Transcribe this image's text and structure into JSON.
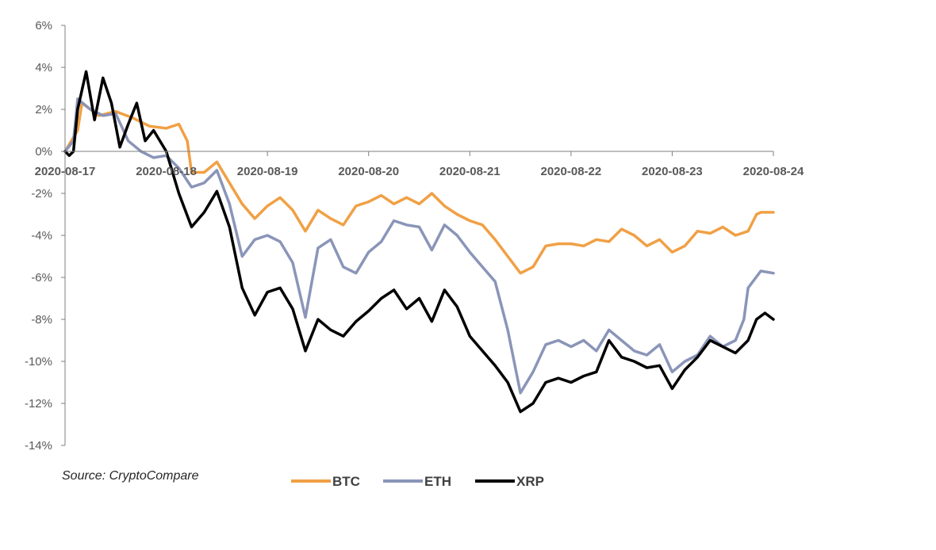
{
  "chart_data": {
    "type": "line",
    "title": "",
    "xlabel": "",
    "ylabel": "",
    "source": "Source: CryptoCompare",
    "ylim": [
      -14,
      6
    ],
    "xlim": [
      "2020-08-17",
      "2020-08-24"
    ],
    "y_ticks": [
      "6%",
      "4%",
      "2%",
      "0%",
      "-2%",
      "-4%",
      "-6%",
      "-8%",
      "-10%",
      "-12%",
      "-14%"
    ],
    "x_ticks": [
      "2020-08-17",
      "2020-08-18",
      "2020-08-19",
      "2020-08-20",
      "2020-08-21",
      "2020-08-22",
      "2020-08-23",
      "2020-08-24"
    ],
    "legend_position": "bottom",
    "grid": false,
    "series": [
      {
        "name": "BTC",
        "color": "#f0a045",
        "points": [
          [
            "2020-08-17 00:00",
            0.0
          ],
          [
            "2020-08-17 03:00",
            1.0
          ],
          [
            "2020-08-17 04:00",
            2.3
          ],
          [
            "2020-08-17 08:00",
            1.7
          ],
          [
            "2020-08-17 12:00",
            1.9
          ],
          [
            "2020-08-17 16:00",
            1.6
          ],
          [
            "2020-08-17 20:00",
            1.2
          ],
          [
            "2020-08-18 00:00",
            1.1
          ],
          [
            "2020-08-18 03:00",
            1.3
          ],
          [
            "2020-08-18 05:00",
            0.5
          ],
          [
            "2020-08-18 06:00",
            -1.0
          ],
          [
            "2020-08-18 09:00",
            -1.0
          ],
          [
            "2020-08-18 12:00",
            -0.5
          ],
          [
            "2020-08-18 15:00",
            -1.5
          ],
          [
            "2020-08-18 18:00",
            -2.5
          ],
          [
            "2020-08-18 21:00",
            -3.2
          ],
          [
            "2020-08-19 00:00",
            -2.6
          ],
          [
            "2020-08-19 03:00",
            -2.2
          ],
          [
            "2020-08-19 06:00",
            -2.8
          ],
          [
            "2020-08-19 09:00",
            -3.8
          ],
          [
            "2020-08-19 12:00",
            -2.8
          ],
          [
            "2020-08-19 15:00",
            -3.2
          ],
          [
            "2020-08-19 18:00",
            -3.5
          ],
          [
            "2020-08-19 21:00",
            -2.6
          ],
          [
            "2020-08-20 00:00",
            -2.4
          ],
          [
            "2020-08-20 03:00",
            -2.1
          ],
          [
            "2020-08-20 06:00",
            -2.5
          ],
          [
            "2020-08-20 09:00",
            -2.2
          ],
          [
            "2020-08-20 12:00",
            -2.5
          ],
          [
            "2020-08-20 15:00",
            -2.0
          ],
          [
            "2020-08-20 18:00",
            -2.6
          ],
          [
            "2020-08-20 21:00",
            -3.0
          ],
          [
            "2020-08-21 00:00",
            -3.3
          ],
          [
            "2020-08-21 03:00",
            -3.5
          ],
          [
            "2020-08-21 06:00",
            -4.2
          ],
          [
            "2020-08-21 09:00",
            -5.0
          ],
          [
            "2020-08-21 12:00",
            -5.8
          ],
          [
            "2020-08-21 15:00",
            -5.5
          ],
          [
            "2020-08-21 18:00",
            -4.5
          ],
          [
            "2020-08-21 21:00",
            -4.4
          ],
          [
            "2020-08-22 00:00",
            -4.4
          ],
          [
            "2020-08-22 03:00",
            -4.5
          ],
          [
            "2020-08-22 06:00",
            -4.2
          ],
          [
            "2020-08-22 09:00",
            -4.3
          ],
          [
            "2020-08-22 12:00",
            -3.7
          ],
          [
            "2020-08-22 15:00",
            -4.0
          ],
          [
            "2020-08-22 18:00",
            -4.5
          ],
          [
            "2020-08-22 21:00",
            -4.2
          ],
          [
            "2020-08-23 00:00",
            -4.8
          ],
          [
            "2020-08-23 03:00",
            -4.5
          ],
          [
            "2020-08-23 06:00",
            -3.8
          ],
          [
            "2020-08-23 09:00",
            -3.9
          ],
          [
            "2020-08-23 12:00",
            -3.6
          ],
          [
            "2020-08-23 15:00",
            -4.0
          ],
          [
            "2020-08-23 18:00",
            -3.8
          ],
          [
            "2020-08-23 20:00",
            -3.0
          ],
          [
            "2020-08-23 21:00",
            -2.9
          ],
          [
            "2020-08-24 00:00",
            -2.9
          ]
        ]
      },
      {
        "name": "ETH",
        "color": "#8a95b8",
        "points": [
          [
            "2020-08-17 00:00",
            0.0
          ],
          [
            "2020-08-17 02:00",
            0.5
          ],
          [
            "2020-08-17 03:00",
            2.5
          ],
          [
            "2020-08-17 06:00",
            2.0
          ],
          [
            "2020-08-17 09:00",
            1.7
          ],
          [
            "2020-08-17 12:00",
            1.8
          ],
          [
            "2020-08-17 15:00",
            0.5
          ],
          [
            "2020-08-17 18:00",
            0.0
          ],
          [
            "2020-08-17 21:00",
            -0.3
          ],
          [
            "2020-08-18 00:00",
            -0.2
          ],
          [
            "2020-08-18 03:00",
            -0.8
          ],
          [
            "2020-08-18 06:00",
            -1.7
          ],
          [
            "2020-08-18 09:00",
            -1.5
          ],
          [
            "2020-08-18 12:00",
            -0.9
          ],
          [
            "2020-08-18 15:00",
            -2.5
          ],
          [
            "2020-08-18 18:00",
            -5.0
          ],
          [
            "2020-08-18 21:00",
            -4.2
          ],
          [
            "2020-08-19 00:00",
            -4.0
          ],
          [
            "2020-08-19 03:00",
            -4.3
          ],
          [
            "2020-08-19 06:00",
            -5.3
          ],
          [
            "2020-08-19 09:00",
            -7.9
          ],
          [
            "2020-08-19 12:00",
            -4.6
          ],
          [
            "2020-08-19 15:00",
            -4.2
          ],
          [
            "2020-08-19 18:00",
            -5.5
          ],
          [
            "2020-08-19 21:00",
            -5.8
          ],
          [
            "2020-08-20 00:00",
            -4.8
          ],
          [
            "2020-08-20 03:00",
            -4.3
          ],
          [
            "2020-08-20 06:00",
            -3.3
          ],
          [
            "2020-08-20 09:00",
            -3.5
          ],
          [
            "2020-08-20 12:00",
            -3.6
          ],
          [
            "2020-08-20 15:00",
            -4.7
          ],
          [
            "2020-08-20 18:00",
            -3.5
          ],
          [
            "2020-08-20 21:00",
            -4.0
          ],
          [
            "2020-08-21 00:00",
            -4.8
          ],
          [
            "2020-08-21 03:00",
            -5.5
          ],
          [
            "2020-08-21 06:00",
            -6.2
          ],
          [
            "2020-08-21 09:00",
            -8.5
          ],
          [
            "2020-08-21 12:00",
            -11.5
          ],
          [
            "2020-08-21 15:00",
            -10.5
          ],
          [
            "2020-08-21 18:00",
            -9.2
          ],
          [
            "2020-08-21 21:00",
            -9.0
          ],
          [
            "2020-08-22 00:00",
            -9.3
          ],
          [
            "2020-08-22 03:00",
            -9.0
          ],
          [
            "2020-08-22 06:00",
            -9.5
          ],
          [
            "2020-08-22 09:00",
            -8.5
          ],
          [
            "2020-08-22 12:00",
            -9.0
          ],
          [
            "2020-08-22 15:00",
            -9.5
          ],
          [
            "2020-08-22 18:00",
            -9.7
          ],
          [
            "2020-08-22 21:00",
            -9.2
          ],
          [
            "2020-08-23 00:00",
            -10.5
          ],
          [
            "2020-08-23 03:00",
            -10.0
          ],
          [
            "2020-08-23 06:00",
            -9.7
          ],
          [
            "2020-08-23 09:00",
            -8.8
          ],
          [
            "2020-08-23 12:00",
            -9.3
          ],
          [
            "2020-08-23 15:00",
            -9.0
          ],
          [
            "2020-08-23 17:00",
            -8.0
          ],
          [
            "2020-08-23 18:00",
            -6.5
          ],
          [
            "2020-08-23 21:00",
            -5.7
          ],
          [
            "2020-08-24 00:00",
            -5.8
          ]
        ]
      },
      {
        "name": "XRP",
        "color": "#000000",
        "points": [
          [
            "2020-08-17 00:00",
            0.0
          ],
          [
            "2020-08-17 01:00",
            -0.2
          ],
          [
            "2020-08-17 02:00",
            0.0
          ],
          [
            "2020-08-17 03:00",
            2.0
          ],
          [
            "2020-08-17 05:00",
            3.8
          ],
          [
            "2020-08-17 07:00",
            1.5
          ],
          [
            "2020-08-17 09:00",
            3.5
          ],
          [
            "2020-08-17 11:00",
            2.3
          ],
          [
            "2020-08-17 13:00",
            0.2
          ],
          [
            "2020-08-17 15:00",
            1.3
          ],
          [
            "2020-08-17 17:00",
            2.3
          ],
          [
            "2020-08-17 19:00",
            0.5
          ],
          [
            "2020-08-17 21:00",
            1.0
          ],
          [
            "2020-08-18 00:00",
            0.0
          ],
          [
            "2020-08-18 03:00",
            -2.0
          ],
          [
            "2020-08-18 06:00",
            -3.6
          ],
          [
            "2020-08-18 09:00",
            -2.9
          ],
          [
            "2020-08-18 12:00",
            -1.9
          ],
          [
            "2020-08-18 15:00",
            -3.6
          ],
          [
            "2020-08-18 18:00",
            -6.5
          ],
          [
            "2020-08-18 21:00",
            -7.8
          ],
          [
            "2020-08-19 00:00",
            -6.7
          ],
          [
            "2020-08-19 03:00",
            -6.5
          ],
          [
            "2020-08-19 06:00",
            -7.5
          ],
          [
            "2020-08-19 09:00",
            -9.5
          ],
          [
            "2020-08-19 12:00",
            -8.0
          ],
          [
            "2020-08-19 15:00",
            -8.5
          ],
          [
            "2020-08-19 18:00",
            -8.8
          ],
          [
            "2020-08-19 21:00",
            -8.1
          ],
          [
            "2020-08-20 00:00",
            -7.6
          ],
          [
            "2020-08-20 03:00",
            -7.0
          ],
          [
            "2020-08-20 06:00",
            -6.6
          ],
          [
            "2020-08-20 09:00",
            -7.5
          ],
          [
            "2020-08-20 12:00",
            -7.0
          ],
          [
            "2020-08-20 15:00",
            -8.1
          ],
          [
            "2020-08-20 18:00",
            -6.6
          ],
          [
            "2020-08-20 21:00",
            -7.4
          ],
          [
            "2020-08-21 00:00",
            -8.8
          ],
          [
            "2020-08-21 03:00",
            -9.5
          ],
          [
            "2020-08-21 06:00",
            -10.2
          ],
          [
            "2020-08-21 09:00",
            -11.0
          ],
          [
            "2020-08-21 12:00",
            -12.4
          ],
          [
            "2020-08-21 15:00",
            -12.0
          ],
          [
            "2020-08-21 18:00",
            -11.0
          ],
          [
            "2020-08-21 21:00",
            -10.8
          ],
          [
            "2020-08-22 00:00",
            -11.0
          ],
          [
            "2020-08-22 03:00",
            -10.7
          ],
          [
            "2020-08-22 06:00",
            -10.5
          ],
          [
            "2020-08-22 09:00",
            -9.0
          ],
          [
            "2020-08-22 12:00",
            -9.8
          ],
          [
            "2020-08-22 15:00",
            -10.0
          ],
          [
            "2020-08-22 18:00",
            -10.3
          ],
          [
            "2020-08-22 21:00",
            -10.2
          ],
          [
            "2020-08-23 00:00",
            -11.3
          ],
          [
            "2020-08-23 03:00",
            -10.4
          ],
          [
            "2020-08-23 06:00",
            -9.8
          ],
          [
            "2020-08-23 09:00",
            -9.0
          ],
          [
            "2020-08-23 12:00",
            -9.3
          ],
          [
            "2020-08-23 15:00",
            -9.6
          ],
          [
            "2020-08-23 18:00",
            -9.0
          ],
          [
            "2020-08-23 20:00",
            -8.0
          ],
          [
            "2020-08-23 22:00",
            -7.7
          ],
          [
            "2020-08-24 00:00",
            -8.0
          ]
        ]
      }
    ]
  }
}
